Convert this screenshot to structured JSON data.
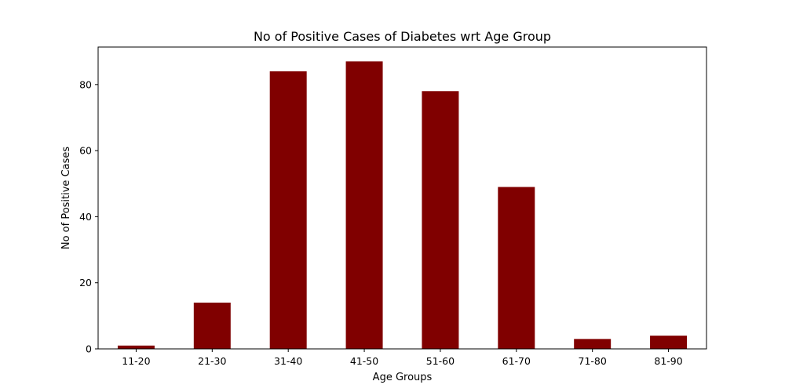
{
  "chart_data": {
    "type": "bar",
    "title": "No of Positive Cases of Diabetes wrt Age Group",
    "xlabel": "Age Groups",
    "ylabel": "No of Positive Cases",
    "categories": [
      "11-20",
      "21-30",
      "31-40",
      "41-50",
      "51-60",
      "61-70",
      "71-80",
      "81-90"
    ],
    "values": [
      1,
      14,
      84,
      87,
      78,
      49,
      3,
      4
    ],
    "ylim": [
      0,
      91.35
    ],
    "yticks": [
      0,
      20,
      40,
      60,
      80
    ],
    "bar_color": "#800000",
    "grid": false,
    "legend": "none"
  }
}
